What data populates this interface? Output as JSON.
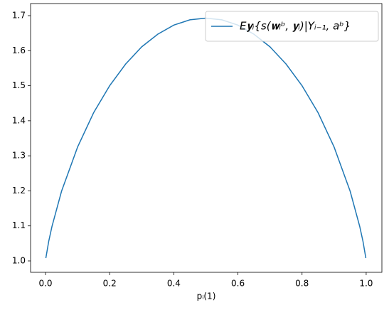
{
  "chart_data": {
    "type": "line",
    "xlabel": "pᵢ(1)",
    "x": [
      0.001,
      0.01,
      0.02,
      0.05,
      0.1,
      0.15,
      0.2,
      0.25,
      0.3,
      0.35,
      0.4,
      0.45,
      0.5,
      0.55,
      0.6,
      0.65,
      0.7,
      0.75,
      0.8,
      0.85,
      0.9,
      0.95,
      0.98,
      0.99,
      0.999
    ],
    "series": [
      {
        "name": "E𝐲ᵢ{s(𝐰ᵢᵇ, 𝐲ᵢ)|Yᵢ₋₁, aᵇ}",
        "color": "#1f77b4",
        "values": [
          1.008,
          1.056,
          1.098,
          1.199,
          1.325,
          1.423,
          1.5,
          1.562,
          1.611,
          1.647,
          1.673,
          1.688,
          1.693,
          1.688,
          1.673,
          1.647,
          1.611,
          1.562,
          1.5,
          1.423,
          1.325,
          1.199,
          1.098,
          1.056,
          1.008
        ]
      }
    ],
    "xlim": [
      -0.0466,
      1.049
    ],
    "ylim": [
      0.9675,
      1.7345
    ],
    "xticks": [
      {
        "value": 0,
        "label": "0.0"
      },
      0.2,
      0.4,
      0.6,
      0.8,
      {
        "value": 1,
        "label": "1.0"
      }
    ],
    "yticks": [
      {
        "value": 1,
        "label": "1.0"
      },
      1.1,
      1.2,
      1.3,
      1.4,
      1.5,
      1.6,
      1.7
    ],
    "legend": "upper right"
  }
}
